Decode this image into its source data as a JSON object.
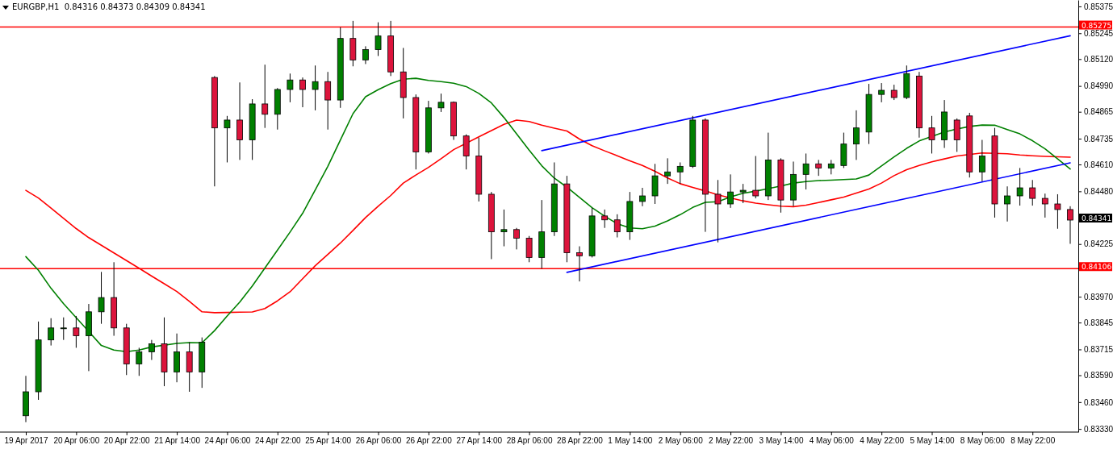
{
  "chart_data": {
    "type": "candlestick",
    "title": "EURGBP,H1  0.84316 0.84373 0.84309 0.84341",
    "categories": [
      "19 Apr 2017",
      null,
      null,
      null,
      "20 Apr 06:00",
      null,
      null,
      null,
      "20 Apr 22:00",
      null,
      null,
      null,
      "21 Apr 14:00",
      null,
      null,
      null,
      "24 Apr 06:00",
      null,
      null,
      null,
      "24 Apr 22:00",
      null,
      null,
      null,
      "25 Apr 14:00",
      null,
      null,
      null,
      "26 Apr 06:00",
      null,
      null,
      null,
      "26 Apr 22:00",
      null,
      null,
      null,
      "27 Apr 14:00",
      null,
      null,
      null,
      "28 Apr 06:00",
      null,
      null,
      null,
      "28 Apr 22:00",
      null,
      null,
      null,
      "1 May 14:00",
      null,
      null,
      null,
      "2 May 06:00",
      null,
      null,
      null,
      "2 May 22:00",
      null,
      null,
      null,
      "3 May 14:00",
      null,
      null,
      null,
      "4 May 06:00",
      null,
      null,
      null,
      "4 May 22:00",
      null,
      null,
      null,
      "5 May 14:00",
      null,
      null,
      null,
      "8 May 06:00",
      null,
      null,
      null,
      "8 May 22:00",
      null,
      null,
      null
    ],
    "ylim": [
      0.83315,
      0.85406
    ],
    "yticks": [
      0.85375,
      0.85245,
      {
        "value": 0.8512,
        "label": "0.85120"
      },
      {
        "value": 0.8499,
        "label": "0.84990"
      },
      0.84865,
      0.84735,
      {
        "value": 0.8461,
        "label": "0.84610"
      },
      {
        "value": 0.8448,
        "label": "0.84480"
      },
      0.84225,
      {
        "value": 0.8397,
        "label": "0.83970"
      },
      0.83845,
      0.83715,
      {
        "value": 0.8359,
        "label": "0.83590"
      },
      {
        "value": 0.8346,
        "label": "0.83460"
      },
      {
        "value": 0.8333,
        "label": "0.83330"
      }
    ],
    "ref_lines": [
      {
        "axis": "y",
        "value": 0.85275,
        "label": "0.85275",
        "color": "#ff0000"
      },
      {
        "axis": "y",
        "value": 0.84106,
        "label": "0.84106",
        "color": "#ff0000"
      }
    ],
    "annotations": [
      "0.84341"
    ],
    "series": [
      {
        "type": "line",
        "color": "#ff0000",
        "values": [
          0.84485,
          0.84448,
          0.84399,
          0.84349,
          0.843,
          0.84256,
          0.84219,
          0.84182,
          0.84145,
          0.84108,
          0.8407,
          0.84033,
          0.83995,
          0.83947,
          0.83897,
          0.83893,
          0.83894,
          0.83895,
          0.83896,
          0.83913,
          0.8395,
          0.83994,
          0.84057,
          0.8412,
          0.84175,
          0.8423,
          0.84291,
          0.84353,
          0.84408,
          0.8446,
          0.8452,
          0.84559,
          0.84596,
          0.84638,
          0.84682,
          null,
          0.84744,
          0.84774,
          0.84804,
          0.84825,
          0.84818,
          0.848,
          0.84786,
          0.84772,
          0.84733,
          0.84701,
          0.84676,
          0.84652,
          0.84628,
          0.84605,
          0.84577,
          0.84545,
          0.84517,
          0.84499,
          0.84482,
          0.84463,
          null,
          0.84434,
          0.84423,
          0.84415,
          0.84408,
          0.84406,
          0.84413,
          0.84426,
          0.84439,
          0.84452,
          0.84472,
          0.84491,
          0.8452,
          0.84556,
          0.84585,
          0.84605,
          0.84623,
          0.84637,
          0.84651,
          null,
          0.84666,
          null,
          0.84662,
          0.84656,
          0.84652,
          0.84649,
          0.84647,
          0.84645
        ]
      },
      {
        "type": "line",
        "color": "#008000",
        "values": [
          0.84164,
          0.84098,
          0.84011,
          0.83936,
          0.83869,
          0.83802,
          0.83734,
          0.83712,
          0.83704,
          0.83712,
          0.83727,
          null,
          0.83744,
          0.83748,
          0.83747,
          0.83806,
          0.83877,
          0.83944,
          0.84022,
          0.84109,
          0.84196,
          0.84283,
          0.84374,
          0.84487,
          0.84601,
          0.84729,
          0.84856,
          0.84938,
          0.84972,
          0.85001,
          0.85023,
          0.85027,
          0.85017,
          0.85011,
          0.85003,
          0.84987,
          0.84954,
          0.84908,
          0.84837,
          0.84758,
          0.84679,
          0.84604,
          0.84544,
          0.845,
          0.84451,
          0.84401,
          0.8436,
          0.84323,
          0.84303,
          0.84299,
          0.84312,
          0.84337,
          0.84367,
          0.84402,
          0.84427,
          0.8443,
          0.84453,
          0.84471,
          0.84481,
          0.84493,
          0.84506,
          0.8452,
          0.84527,
          0.84532,
          0.84534,
          0.84537,
          0.8454,
          0.84559,
          0.84603,
          0.84647,
          0.84688,
          0.84724,
          0.84746,
          0.84767,
          0.84782,
          0.84794,
          0.84801,
          0.848,
          0.84779,
          0.84758,
          0.84725,
          0.84686,
          0.84637,
          0.84588
        ]
      },
      {
        "type": "line",
        "color": "#0000ff",
        "values": [
          null,
          null,
          null,
          null,
          null,
          null,
          null,
          null,
          null,
          null,
          null,
          null,
          null,
          null,
          null,
          null,
          null,
          null,
          null,
          null,
          null,
          null,
          null,
          null,
          null,
          null,
          null,
          null,
          null,
          null,
          null,
          null,
          null,
          null,
          null,
          null,
          null,
          null,
          null,
          null,
          null,
          0.84677,
          null,
          null,
          null,
          null,
          null,
          null,
          null,
          null,
          null,
          null,
          null,
          null,
          null,
          null,
          null,
          null,
          null,
          null,
          null,
          null,
          null,
          null,
          null,
          null,
          null,
          null,
          null,
          null,
          null,
          null,
          null,
          null,
          null,
          null,
          null,
          null,
          null,
          null,
          null,
          null,
          null,
          0.85233
        ]
      },
      {
        "type": "line",
        "color": "#0000ff",
        "values": [
          null,
          null,
          null,
          null,
          null,
          null,
          null,
          null,
          null,
          null,
          null,
          null,
          null,
          null,
          null,
          null,
          null,
          null,
          null,
          null,
          null,
          null,
          null,
          null,
          null,
          null,
          null,
          null,
          null,
          null,
          null,
          null,
          null,
          null,
          null,
          null,
          null,
          null,
          null,
          null,
          null,
          null,
          null,
          0.84088,
          null,
          null,
          null,
          null,
          null,
          null,
          null,
          null,
          null,
          null,
          null,
          null,
          null,
          null,
          null,
          null,
          null,
          null,
          null,
          null,
          null,
          null,
          null,
          null,
          null,
          null,
          null,
          null,
          null,
          null,
          null,
          null,
          null,
          null,
          null,
          null,
          null,
          null,
          null,
          0.84618
        ]
      },
      {
        "ohlc": [
          [
            0.83394,
            0.83587,
            0.83363,
            0.8351
          ],
          [
            0.8351,
            0.8385,
            0.83471,
            0.83761
          ],
          [
            0.83761,
            0.83866,
            0.83734,
            0.83819
          ],
          [
            0.83819,
            0.8387,
            0.83761,
            0.83819
          ],
          [
            0.83819,
            0.83877,
            0.83723,
            0.83781
          ],
          [
            0.83781,
            0.83935,
            0.8361,
            0.83897
          ],
          [
            0.83897,
            0.8409,
            0.83839,
            0.83966
          ],
          [
            0.83966,
            0.84137,
            0.83781,
            0.83819
          ],
          [
            0.83819,
            0.83839,
            0.83591,
            0.83645
          ],
          [
            0.83645,
            0.83723,
            0.83587,
            0.83703
          ],
          [
            0.83703,
            0.83761,
            0.83664,
            0.83742
          ],
          [
            0.83742,
            0.8387,
            0.83537,
            0.83606
          ],
          [
            0.83606,
            0.83792,
            0.83556,
            0.83703
          ],
          [
            0.83703,
            0.8375,
            0.8351,
            0.83606
          ],
          [
            0.83606,
            0.83773,
            0.83529,
            0.8375
          ],
          [
            0.85031,
            0.85038,
            0.84504,
            0.84787
          ],
          [
            0.84787,
            0.84845,
            0.8462,
            0.84825
          ],
          [
            0.84825,
            0.85007,
            0.84632,
            0.84729
          ],
          [
            0.84729,
            0.84926,
            0.84632,
            0.84903
          ],
          [
            0.84903,
            0.85093,
            0.84787,
            0.84853
          ],
          [
            0.84853,
            0.8498,
            0.84779,
            0.84973
          ],
          [
            0.84973,
            0.8505,
            0.84911,
            0.85019
          ],
          [
            0.85019,
            0.85031,
            0.84887,
            0.84973
          ],
          [
            0.84973,
            0.85089,
            0.84872,
            0.85011
          ],
          [
            0.85011,
            0.85058,
            0.84779,
            0.84922
          ],
          [
            0.84922,
            0.85274,
            0.84884,
            0.8522
          ],
          [
            0.8522,
            0.85305,
            0.85085,
            0.85116
          ],
          [
            0.85116,
            0.85182,
            0.85096,
            0.85166
          ],
          [
            0.85166,
            0.85298,
            0.85135,
            0.85232
          ],
          [
            0.85232,
            0.85305,
            0.85038,
            0.85058
          ],
          [
            0.85058,
            0.85174,
            0.84833,
            0.84934
          ],
          [
            0.84934,
            0.84949,
            0.84586,
            0.84671
          ],
          [
            0.84671,
            0.84918,
            0.84663,
            0.84884
          ],
          [
            0.84884,
            0.84953,
            0.84864,
            0.84911
          ],
          [
            0.84911,
            0.84915,
            0.84729,
            0.84748
          ],
          [
            0.84748,
            0.84756,
            0.84586,
            0.84651
          ],
          [
            0.84651,
            0.8474,
            0.84431,
            0.84466
          ],
          [
            0.84466,
            0.84477,
            0.84152,
            0.84284
          ],
          [
            0.84284,
            0.84392,
            0.84214,
            0.84295
          ],
          [
            0.84295,
            0.84303,
            0.84199,
            0.84253
          ],
          [
            0.84253,
            0.84264,
            0.84137,
            0.8416
          ],
          [
            0.8416,
            0.84438,
            0.84106,
            0.84284
          ],
          [
            0.84284,
            0.8462,
            0.84264,
            0.84516
          ],
          [
            0.84516,
            0.84555,
            0.84137,
            0.84183
          ],
          [
            0.84183,
            0.84214,
            0.84044,
            0.84168
          ],
          [
            0.84168,
            0.844,
            0.8416,
            0.84361
          ],
          [
            0.84361,
            0.84392,
            0.84303,
            0.84342
          ],
          [
            0.84342,
            0.84369,
            0.84257,
            0.84284
          ],
          [
            0.84284,
            0.84477,
            0.84245,
            0.84431
          ],
          [
            0.84431,
            0.84497,
            0.84408,
            0.84458
          ],
          [
            0.84458,
            0.84613,
            0.84419,
            0.84555
          ],
          [
            0.84555,
            0.8464,
            0.84516,
            0.84574
          ],
          [
            0.84574,
            0.8462,
            0.84516,
            0.84601
          ],
          [
            0.84601,
            0.84845,
            0.84593,
            0.84825
          ],
          [
            0.84825,
            0.84833,
            0.84284,
            0.84466
          ],
          [
            0.84466,
            0.84535,
            0.84233,
            0.84419
          ],
          [
            0.84419,
            0.84562,
            0.844,
            0.84477
          ],
          [
            0.84477,
            0.84516,
            0.84423,
            0.84485
          ],
          [
            0.84485,
            0.84651,
            0.84446,
            0.84458
          ],
          [
            0.84458,
            0.84764,
            0.84438,
            0.84632
          ],
          [
            0.84632,
            0.8464,
            0.84377,
            0.84438
          ],
          [
            0.84438,
            0.84624,
            0.84408,
            0.84562
          ],
          [
            0.84562,
            0.84663,
            0.84489,
            0.84613
          ],
          [
            0.84613,
            0.84632,
            0.84555,
            0.84593
          ],
          [
            0.84593,
            0.84632,
            0.84562,
            0.84613
          ],
          [
            0.84605,
            0.84764,
            0.84593,
            0.84709
          ],
          [
            0.84709,
            0.84872,
            0.84632,
            0.84787
          ],
          [
            0.84767,
            0.85,
            0.84709,
            0.84949
          ],
          [
            0.84949,
            0.85004,
            0.84911,
            0.84969
          ],
          [
            0.84969,
            0.84996,
            0.84922,
            0.84934
          ],
          [
            0.84934,
            0.85089,
            0.84926,
            0.8505
          ],
          [
            0.85038,
            0.85058,
            0.8474,
            0.84787
          ],
          [
            0.84787,
            0.84845,
            0.84663,
            0.84729
          ],
          [
            0.84729,
            0.84922,
            0.8469,
            0.84864
          ],
          [
            0.84825,
            0.84833,
            0.84671,
            0.84729
          ],
          [
            0.84845,
            0.8486,
            0.84547,
            0.84574
          ],
          [
            0.84574,
            0.84729,
            0.84528,
            0.84651
          ],
          [
            0.84748,
            0.84787,
            0.84353,
            0.84419
          ],
          [
            0.84419,
            0.84504,
            0.84334,
            0.84458
          ],
          [
            0.84458,
            0.84593,
            0.84411,
            0.84497
          ],
          [
            0.84497,
            0.84535,
            0.84411,
            0.84446
          ],
          [
            0.84446,
            0.84469,
            0.84353,
            0.84419
          ],
          [
            0.84419,
            0.84466,
            0.84299,
            0.84392
          ],
          [
            0.84392,
            0.84408,
            0.84226,
            0.84341
          ]
        ],
        "colors": [
          "#008000",
          "#008000",
          "#008000",
          "#008000",
          "#dc143c",
          "#008000",
          "#008000",
          "#dc143c",
          "#dc143c",
          "#008000",
          "#008000",
          "#dc143c",
          "#008000",
          "#dc143c",
          "#008000",
          "#dc143c",
          "#008000",
          "#dc143c",
          "#008000",
          "#dc143c",
          "#008000",
          "#008000",
          "#dc143c",
          "#008000",
          "#dc143c",
          "#008000",
          "#dc143c",
          "#008000",
          "#008000",
          "#dc143c",
          "#dc143c",
          "#dc143c",
          "#008000",
          "#008000",
          "#dc143c",
          "#dc143c",
          "#dc143c",
          "#dc143c",
          "#008000",
          "#dc143c",
          "#dc143c",
          "#008000",
          "#008000",
          "#dc143c",
          "#dc143c",
          "#008000",
          "#dc143c",
          "#dc143c",
          "#008000",
          "#008000",
          "#008000",
          "#008000",
          "#008000",
          "#008000",
          "#dc143c",
          "#dc143c",
          "#008000",
          "#008000",
          "#dc143c",
          "#008000",
          "#dc143c",
          "#008000",
          "#008000",
          "#dc143c",
          "#008000",
          "#008000",
          "#008000",
          "#008000",
          "#008000",
          "#dc143c",
          "#008000",
          "#dc143c",
          "#dc143c",
          "#008000",
          "#dc143c",
          "#dc143c",
          "#008000",
          "#dc143c",
          "#008000",
          "#008000",
          "#dc143c",
          "#dc143c",
          "#dc143c",
          "#dc143c"
        ]
      }
    ]
  }
}
